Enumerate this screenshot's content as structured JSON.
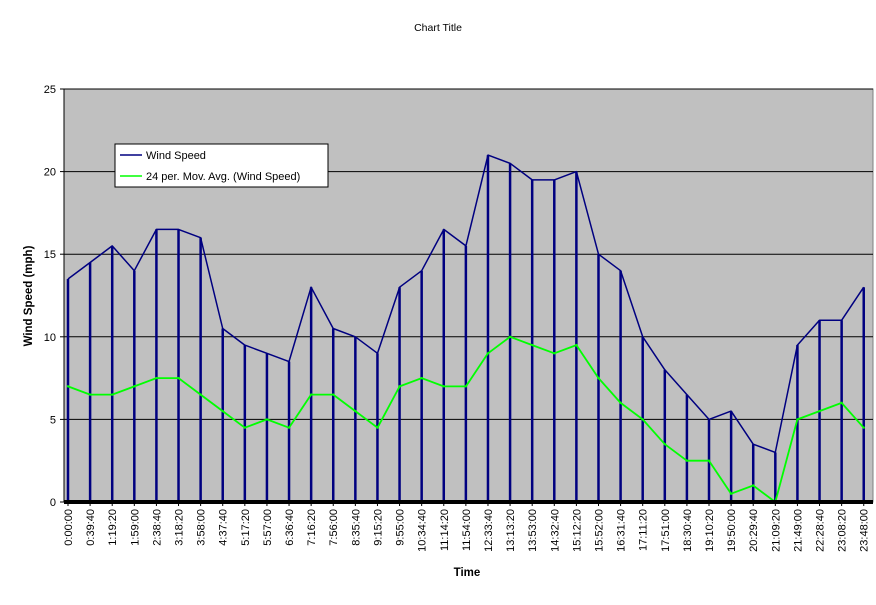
{
  "chart_data": {
    "type": "line",
    "title": "Chart Title",
    "xlabel": "Time",
    "ylabel": "Wind Speed (mph)",
    "ylim": [
      0,
      25
    ],
    "y_ticks": [
      0,
      5,
      10,
      15,
      20,
      25
    ],
    "grid": "horizontal",
    "background": "#c0c0c0",
    "legend_position": "top-left",
    "x_tick_labels": [
      "0:00:00",
      "0:39:40",
      "1:19:20",
      "1:59:00",
      "2:38:40",
      "3:18:20",
      "3:58:00",
      "4:37:40",
      "5:17:20",
      "5:57:00",
      "6:36:40",
      "7:16:20",
      "7:56:00",
      "8:35:40",
      "9:15:20",
      "9:55:00",
      "10:34:40",
      "11:14:20",
      "11:54:00",
      "12:33:40",
      "13:13:20",
      "13:53:00",
      "14:32:40",
      "15:12:20",
      "15:52:00",
      "16:31:40",
      "17:11:20",
      "17:51:00",
      "18:30:40",
      "19:10:20",
      "19:50:00",
      "20:29:40",
      "21:09:20",
      "21:49:00",
      "22:28:40",
      "23:08:20",
      "23:48:00"
    ],
    "series": [
      {
        "name": "Wind Speed",
        "color": "#000080",
        "x": [
          "0:00:00",
          "0:39:40",
          "1:19:20",
          "1:59:00",
          "2:38:40",
          "3:18:20",
          "3:58:00",
          "4:37:40",
          "5:17:20",
          "5:57:00",
          "6:36:40",
          "7:16:20",
          "7:56:00",
          "8:35:40",
          "9:15:20",
          "9:55:00",
          "10:34:40",
          "11:14:20",
          "11:54:00",
          "12:33:40",
          "13:13:20",
          "13:53:00",
          "14:32:40",
          "15:12:20",
          "15:52:00",
          "16:31:40",
          "17:11:20",
          "17:51:00",
          "18:30:40",
          "19:10:20",
          "19:50:00",
          "20:29:40",
          "21:09:20",
          "21:49:00",
          "22:28:40",
          "23:08:20",
          "23:48:00"
        ],
        "low": [
          0,
          0,
          0,
          0,
          0,
          0,
          0,
          0,
          0,
          0,
          0,
          0,
          0,
          0,
          0,
          0,
          0,
          0,
          0,
          0,
          0,
          0,
          0,
          0,
          0,
          0,
          0,
          0,
          0,
          0,
          0,
          0,
          0,
          0,
          0,
          0,
          0
        ],
        "high": [
          13.5,
          14.5,
          15.5,
          14,
          16.5,
          16.5,
          16,
          10.5,
          9.5,
          9,
          8.5,
          13,
          10.5,
          10,
          9,
          13,
          14,
          16.5,
          15.5,
          21,
          20.5,
          19.5,
          19.5,
          20,
          15,
          14,
          10,
          8,
          6.5,
          5,
          5.5,
          3.5,
          3,
          9.5,
          11,
          11,
          13
        ]
      },
      {
        "name": "24 per. Mov. Avg. (Wind Speed)",
        "color": "#00ff00",
        "x": [
          "0:00:00",
          "0:39:40",
          "1:19:20",
          "1:59:00",
          "2:38:40",
          "3:18:20",
          "3:58:00",
          "4:37:40",
          "5:17:20",
          "5:57:00",
          "6:36:40",
          "7:16:20",
          "7:56:00",
          "8:35:40",
          "9:15:20",
          "9:55:00",
          "10:34:40",
          "11:14:20",
          "11:54:00",
          "12:33:40",
          "13:13:20",
          "13:53:00",
          "14:32:40",
          "15:12:20",
          "15:52:00",
          "16:31:40",
          "17:11:20",
          "17:51:00",
          "18:30:40",
          "19:10:20",
          "19:50:00",
          "20:29:40",
          "21:09:20",
          "21:49:00",
          "22:28:40",
          "23:08:20",
          "23:48:00"
        ],
        "values": [
          7,
          6.5,
          6.5,
          7,
          7.5,
          7.5,
          6.5,
          5.5,
          4.5,
          5,
          4.5,
          6.5,
          6.5,
          5.5,
          4.5,
          7,
          7.5,
          7,
          7,
          9,
          10,
          9.5,
          9,
          9.5,
          7.5,
          6,
          5,
          3.5,
          2.5,
          2.5,
          0.5,
          1,
          0,
          5,
          5.5,
          6,
          4.5
        ]
      }
    ]
  }
}
